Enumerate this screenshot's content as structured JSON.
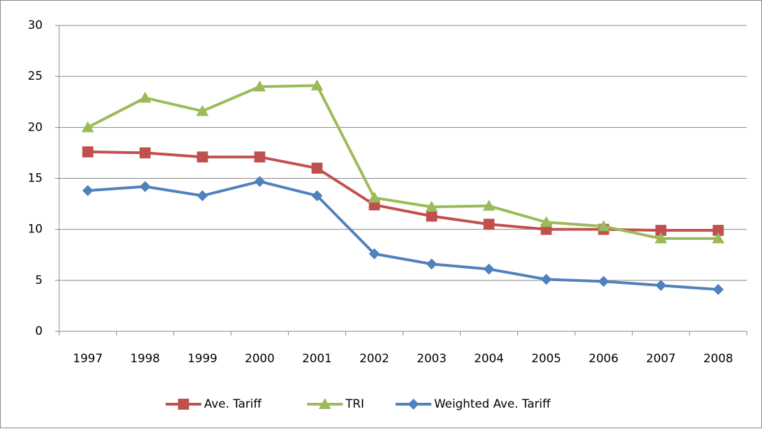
{
  "chart_data": {
    "type": "line",
    "categories": [
      "1997",
      "1998",
      "1999",
      "2000",
      "2001",
      "2002",
      "2003",
      "2004",
      "2005",
      "2006",
      "2007",
      "2008"
    ],
    "series": [
      {
        "name": "Ave. Tariff",
        "color": "#c0504d",
        "marker": "square",
        "values": [
          17.6,
          17.5,
          17.1,
          17.1,
          16.0,
          12.4,
          11.3,
          10.5,
          10.0,
          10.0,
          9.9,
          9.9
        ]
      },
      {
        "name": "TRI",
        "color": "#9bbb59",
        "marker": "triangle",
        "values": [
          20.0,
          22.9,
          21.6,
          24.0,
          24.1,
          13.1,
          12.2,
          12.3,
          10.7,
          10.3,
          9.1,
          9.1
        ]
      },
      {
        "name": "Weighted Ave. Tariff",
        "color": "#4f81bd",
        "marker": "diamond",
        "values": [
          13.8,
          14.2,
          13.3,
          14.7,
          13.3,
          7.6,
          6.6,
          6.1,
          5.1,
          4.9,
          4.5,
          4.1
        ]
      }
    ],
    "ylim": [
      0,
      30
    ],
    "yticks": [
      0,
      5,
      10,
      15,
      20,
      25,
      30
    ],
    "grid": true,
    "legend": "bottom"
  }
}
